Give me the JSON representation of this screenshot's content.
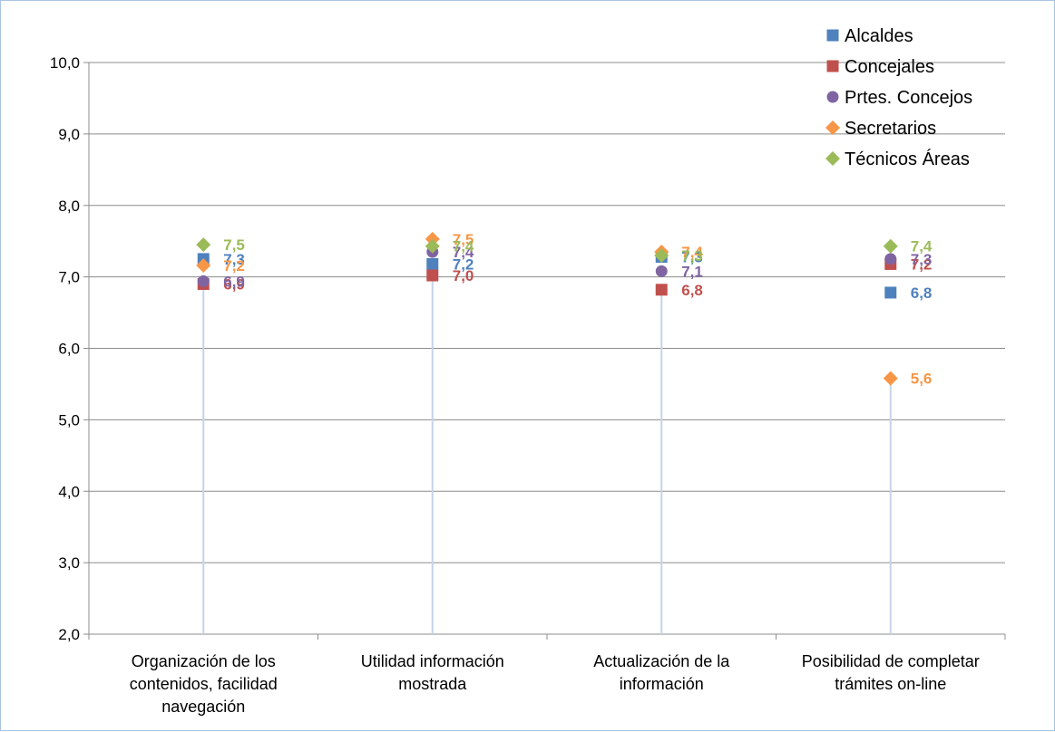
{
  "chart_data": {
    "type": "scatter",
    "title": "",
    "xlabel": "",
    "ylabel": "",
    "ylim": [
      2,
      10
    ],
    "y_ticks": [
      "2,0",
      "3,0",
      "4,0",
      "5,0",
      "6,0",
      "7,0",
      "8,0",
      "9,0",
      "10,0"
    ],
    "categories": [
      [
        "Organización de los",
        "contenidos, facilidad",
        "navegación"
      ],
      [
        "Utilidad información",
        "mostrada"
      ],
      [
        "Actualización de la",
        "información"
      ],
      [
        "Posibilidad de completar",
        "trámites on-line"
      ]
    ],
    "grid": true,
    "legend_position": "top-right",
    "series": [
      {
        "name": "Alcaldes",
        "marker": "square",
        "color": "#4f81bd",
        "values": [
          7.25,
          7.18,
          7.28,
          6.78
        ],
        "labels": [
          "7,3",
          "7,2",
          "7,3",
          "6,8"
        ]
      },
      {
        "name": "Concejales",
        "marker": "square",
        "color": "#c0504d",
        "values": [
          6.9,
          7.02,
          6.82,
          7.18
        ],
        "labels": [
          "6,9",
          "7,0",
          "6,8",
          "7,2"
        ]
      },
      {
        "name": "Prtes. Concejos",
        "marker": "circle",
        "color": "#8064a2",
        "values": [
          6.94,
          7.35,
          7.08,
          7.25
        ],
        "labels": [
          "6,9",
          "7,4",
          "7,1",
          "7,3"
        ]
      },
      {
        "name": "Secretarios",
        "marker": "diamond",
        "color": "#f79646",
        "values": [
          7.16,
          7.53,
          7.35,
          5.58
        ],
        "labels": [
          "7,2",
          "7,5",
          "7,4",
          "5,6"
        ]
      },
      {
        "name": "Técnicos Áreas",
        "marker": "diamond",
        "color": "#9bbb59",
        "values": [
          7.45,
          7.43,
          7.3,
          7.43
        ],
        "labels": [
          "7,5",
          "7,4",
          "7,3",
          "7,4"
        ]
      }
    ]
  }
}
